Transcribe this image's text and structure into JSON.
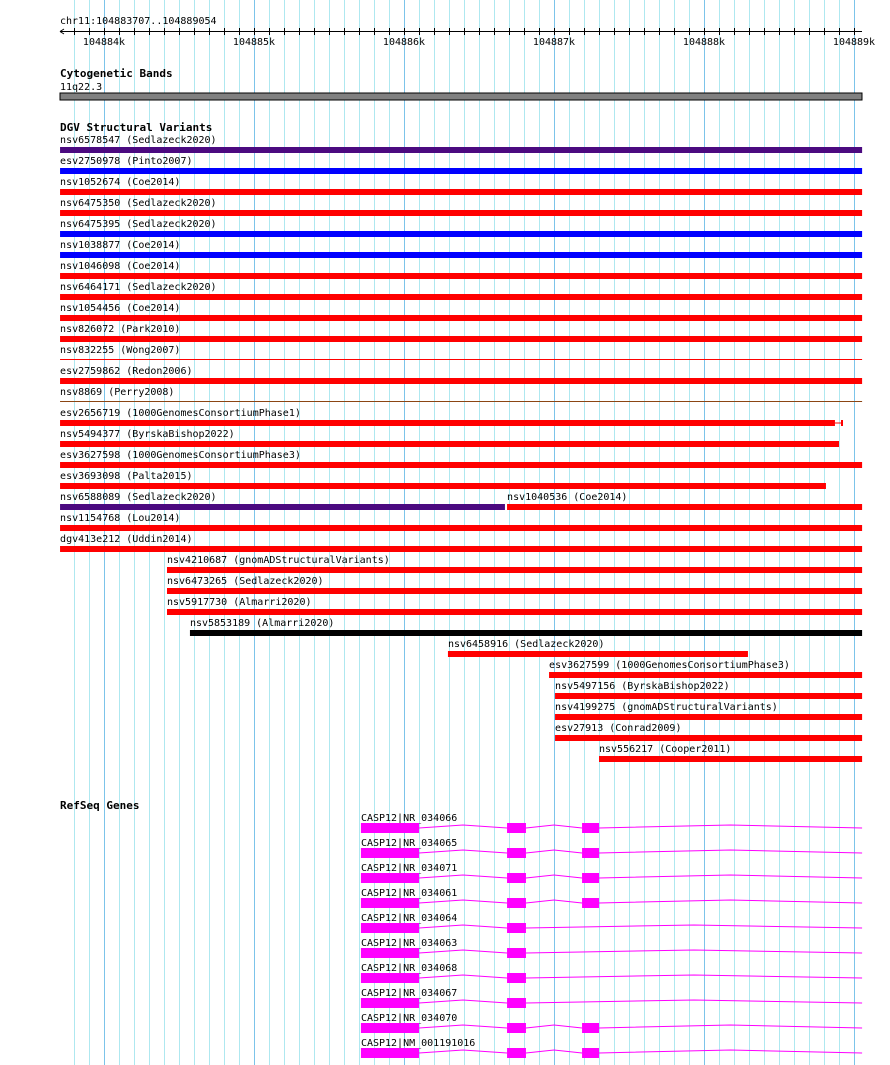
{
  "view": {
    "chrom": "chr11",
    "start": 104883707,
    "end": 104889054,
    "location_label": "chr11:104883707..104889054"
  },
  "ruler": {
    "labels": [
      "104884k",
      "104885k",
      "104886k",
      "104887k",
      "104888k",
      "104889k"
    ],
    "label_positions": [
      104884000,
      104885000,
      104886000,
      104887000,
      104888000,
      104889000
    ]
  },
  "cytobands": {
    "title": "Cytogenetic Bands",
    "band_label": "11q22.3",
    "color": "#808080"
  },
  "dgv": {
    "title": "DGV Structural Variants",
    "colors": {
      "red": "#ff0000",
      "blue": "#0000ff",
      "purple": "#4b0a80",
      "black": "#000000",
      "brown": "#8b4513"
    },
    "rows": [
      [
        {
          "label": "nsv6578547 (Sedlazeck2020)",
          "start": 104883707,
          "end": 104889054,
          "color": "purple"
        }
      ],
      [
        {
          "label": "esv2750978 (Pinto2007)",
          "start": 104883707,
          "end": 104889054,
          "color": "blue"
        }
      ],
      [
        {
          "label": "nsv1052674 (Coe2014)",
          "start": 104883707,
          "end": 104889054,
          "color": "red"
        }
      ],
      [
        {
          "label": "nsv6475350 (Sedlazeck2020)",
          "start": 104883707,
          "end": 104889054,
          "color": "red"
        }
      ],
      [
        {
          "label": "nsv6475395 (Sedlazeck2020)",
          "start": 104883707,
          "end": 104889054,
          "color": "blue"
        }
      ],
      [
        {
          "label": "nsv1038877 (Coe2014)",
          "start": 104883707,
          "end": 104889054,
          "color": "blue"
        }
      ],
      [
        {
          "label": "nsv1046098 (Coe2014)",
          "start": 104883707,
          "end": 104889054,
          "color": "red"
        }
      ],
      [
        {
          "label": "nsv6464171 (Sedlazeck2020)",
          "start": 104883707,
          "end": 104889054,
          "color": "red"
        }
      ],
      [
        {
          "label": "nsv1054456 (Coe2014)",
          "start": 104883707,
          "end": 104889054,
          "color": "red"
        }
      ],
      [
        {
          "label": "nsv826072 (Park2010)",
          "start": 104883707,
          "end": 104889054,
          "color": "red"
        }
      ],
      [
        {
          "label": "nsv832255 (Wong2007)",
          "start": 104883707,
          "end": 104889054,
          "color": "red",
          "thin": true
        }
      ],
      [
        {
          "label": "esv2759862 (Redon2006)",
          "start": 104883707,
          "end": 104889054,
          "color": "red"
        }
      ],
      [
        {
          "label": "nsv8869 (Perry2008)",
          "start": 104883707,
          "end": 104889054,
          "color": "brown",
          "thin": true
        }
      ],
      [
        {
          "label": "esv2656719 (1000GenomesConsortiumPhase1)",
          "start": 104883707,
          "end": 104888873,
          "color": "red",
          "whisker_end": 104888920
        }
      ],
      [
        {
          "label": "nsv5494377 (ByrskaBishop2022)",
          "start": 104883707,
          "end": 104888900,
          "color": "red"
        }
      ],
      [
        {
          "label": "esv3627598 (1000GenomesConsortiumPhase3)",
          "start": 104883707,
          "end": 104889054,
          "color": "red"
        }
      ],
      [
        {
          "label": "esv3693098 (Palta2015)",
          "start": 104883707,
          "end": 104888813,
          "color": "red"
        }
      ],
      [
        {
          "label": "nsv6588089 (Sedlazeck2020)",
          "start": 104883707,
          "end": 104886673,
          "color": "purple"
        },
        {
          "label": "nsv1040536 (Coe2014)",
          "start": 104886687,
          "end": 104889054,
          "color": "red"
        }
      ],
      [
        {
          "label": "nsv1154768 (Lou2014)",
          "start": 104883707,
          "end": 104889054,
          "color": "red"
        }
      ],
      [
        {
          "label": "dgv413e212 (Uddin2014)",
          "start": 104883707,
          "end": 104889054,
          "color": "red"
        }
      ],
      [
        {
          "label": "nsv4210687 (gnomADStructuralVariants)",
          "start": 104884420,
          "end": 104889054,
          "color": "red"
        }
      ],
      [
        {
          "label": "nsv6473265 (Sedlazeck2020)",
          "start": 104884420,
          "end": 104889054,
          "color": "red"
        }
      ],
      [
        {
          "label": "nsv5917730 (Almarri2020)",
          "start": 104884420,
          "end": 104889054,
          "color": "red"
        }
      ],
      [
        {
          "label": "nsv5853189 (Almarri2020)",
          "start": 104884573,
          "end": 104889054,
          "color": "black"
        }
      ],
      [
        {
          "label": "nsv6458916 (Sedlazeck2020)",
          "start": 104886293,
          "end": 104888293,
          "color": "red"
        }
      ],
      [
        {
          "label": "esv3627599 (1000GenomesConsortiumPhase3)",
          "start": 104886967,
          "end": 104889054,
          "color": "red"
        }
      ],
      [
        {
          "label": "nsv5497156 (ByrskaBishop2022)",
          "start": 104887007,
          "end": 104889054,
          "color": "red"
        }
      ],
      [
        {
          "label": "nsv4199275 (gnomADStructuralVariants)",
          "start": 104887007,
          "end": 104889054,
          "color": "red"
        }
      ],
      [
        {
          "label": "esv27913 (Conrad2009)",
          "start": 104887007,
          "end": 104889054,
          "color": "red"
        }
      ],
      [
        {
          "label": "nsv556217 (Cooper2011)",
          "start": 104887300,
          "end": 104889054,
          "color": "red"
        }
      ]
    ]
  },
  "refseq": {
    "title": "RefSeq Genes",
    "color": "#ff00ff",
    "gene_end": 104889054,
    "genes": [
      {
        "label": "CASP12|NR_034066",
        "exons": [
          [
            104885713,
            104886100
          ],
          [
            104886687,
            104886813
          ],
          [
            104887187,
            104887300
          ]
        ]
      },
      {
        "label": "CASP12|NR_034065",
        "exons": [
          [
            104885713,
            104886100
          ],
          [
            104886687,
            104886813
          ],
          [
            104887187,
            104887300
          ]
        ]
      },
      {
        "label": "CASP12|NR_034071",
        "exons": [
          [
            104885713,
            104886100
          ],
          [
            104886687,
            104886813
          ],
          [
            104887187,
            104887300
          ]
        ]
      },
      {
        "label": "CASP12|NR_034061",
        "exons": [
          [
            104885713,
            104886100
          ],
          [
            104886687,
            104886813
          ],
          [
            104887187,
            104887300
          ]
        ]
      },
      {
        "label": "CASP12|NR_034064",
        "exons": [
          [
            104885713,
            104886100
          ],
          [
            104886687,
            104886813
          ]
        ]
      },
      {
        "label": "CASP12|NR_034063",
        "exons": [
          [
            104885713,
            104886100
          ],
          [
            104886687,
            104886813
          ]
        ]
      },
      {
        "label": "CASP12|NR_034068",
        "exons": [
          [
            104885713,
            104886100
          ],
          [
            104886687,
            104886813
          ]
        ]
      },
      {
        "label": "CASP12|NR_034067",
        "exons": [
          [
            104885713,
            104886100
          ],
          [
            104886687,
            104886813
          ]
        ]
      },
      {
        "label": "CASP12|NR_034070",
        "exons": [
          [
            104885713,
            104886100
          ],
          [
            104886687,
            104886813
          ],
          [
            104887187,
            104887300
          ]
        ]
      },
      {
        "label": "CASP12|NM_001191016",
        "exons": [
          [
            104885713,
            104886100
          ],
          [
            104886687,
            104886813
          ],
          [
            104887187,
            104887300
          ]
        ]
      }
    ]
  }
}
